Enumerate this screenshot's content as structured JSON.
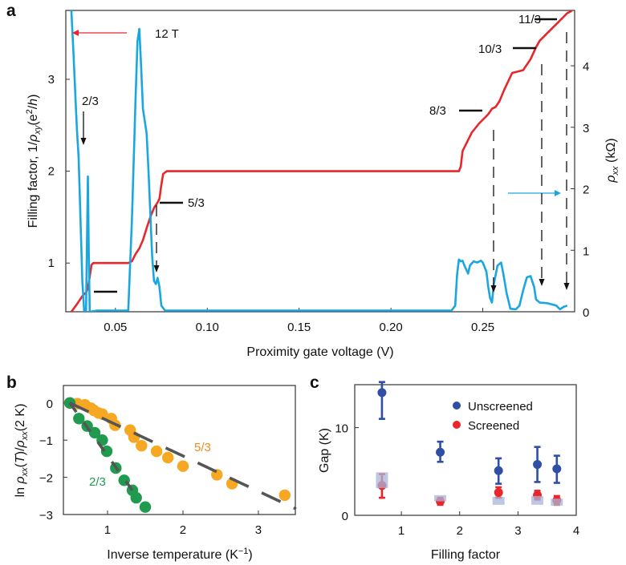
{
  "chart_data": [
    {
      "panel": "a",
      "type": "line",
      "xlabel": "Proximity gate voltage (V)",
      "ylabel_left": "Filling factor, 1/ρxy(e²/h)",
      "ylabel_right": "ρxx (kΩ)",
      "xlim": [
        0.023,
        0.3
      ],
      "ylim_left": [
        0.47,
        3.75
      ],
      "ylim_right": [
        0,
        4.9
      ],
      "x_ticks": [
        {
          "value": 0.05,
          "label": "0.05"
        },
        {
          "value": 0.1,
          "label": "0.10"
        },
        {
          "value": 0.15,
          "label": "0.15"
        },
        {
          "value": 0.2,
          "label": "0.20"
        },
        {
          "value": 0.25,
          "label": "0.25"
        }
      ],
      "y_ticks_left": [
        {
          "value": 1,
          "label": "1"
        },
        {
          "value": 2,
          "label": "2"
        },
        {
          "value": 3,
          "label": "3"
        }
      ],
      "y_ticks_right": [
        {
          "value": 0,
          "label": "0"
        },
        {
          "value": 1,
          "label": "1"
        },
        {
          "value": 2,
          "label": "2"
        },
        {
          "value": 3,
          "label": "3"
        },
        {
          "value": 4,
          "label": "4"
        }
      ],
      "field_label": "12 T",
      "series": [
        {
          "name": "Filling factor (1/ρxy)",
          "axis": "left",
          "color": "#e8262b",
          "points": [
            [
              0.026,
              0.47
            ],
            [
              0.029,
              0.55
            ],
            [
              0.032,
              0.64
            ],
            [
              0.034,
              0.68
            ],
            [
              0.035,
              0.72
            ],
            [
              0.036,
              0.85
            ],
            [
              0.037,
              0.98
            ],
            [
              0.038,
              1.0
            ],
            [
              0.05,
              1.0
            ],
            [
              0.057,
              1.0
            ],
            [
              0.059,
              1.02
            ],
            [
              0.061,
              1.1
            ],
            [
              0.063,
              1.16
            ],
            [
              0.065,
              1.25
            ],
            [
              0.067,
              1.38
            ],
            [
              0.069,
              1.5
            ],
            [
              0.071,
              1.6
            ],
            [
              0.073,
              1.66
            ],
            [
              0.074,
              1.7
            ],
            [
              0.075,
              1.85
            ],
            [
              0.076,
              1.97
            ],
            [
              0.078,
              2.0
            ],
            [
              0.12,
              2.0
            ],
            [
              0.18,
              2.0
            ],
            [
              0.237,
              2.0
            ],
            [
              0.238,
              2.05
            ],
            [
              0.239,
              2.22
            ],
            [
              0.241,
              2.3
            ],
            [
              0.244,
              2.42
            ],
            [
              0.248,
              2.52
            ],
            [
              0.253,
              2.62
            ],
            [
              0.255,
              2.68
            ],
            [
              0.257,
              2.7
            ],
            [
              0.259,
              2.76
            ],
            [
              0.262,
              2.9
            ],
            [
              0.266,
              3.07
            ],
            [
              0.27,
              3.09
            ],
            [
              0.272,
              3.1
            ],
            [
              0.276,
              3.22
            ],
            [
              0.279,
              3.35
            ],
            [
              0.281,
              3.42
            ],
            [
              0.283,
              3.46
            ],
            [
              0.287,
              3.54
            ],
            [
              0.291,
              3.62
            ],
            [
              0.294,
              3.68
            ],
            [
              0.296,
              3.72
            ],
            [
              0.298,
              3.74
            ],
            [
              0.299,
              3.76
            ]
          ]
        },
        {
          "name": "ρxx",
          "axis": "right",
          "color": "#1aa7e0",
          "points": [
            [
              0.026,
              4.9
            ],
            [
              0.027,
              4.3
            ],
            [
              0.029,
              3.0
            ],
            [
              0.03,
              2.5
            ],
            [
              0.031,
              1.5
            ],
            [
              0.032,
              0.5
            ],
            [
              0.033,
              0.0
            ],
            [
              0.034,
              0.0
            ],
            [
              0.035,
              2.2
            ],
            [
              0.0355,
              1.0
            ],
            [
              0.036,
              0.0
            ],
            [
              0.04,
              0.02
            ],
            [
              0.05,
              0.02
            ],
            [
              0.057,
              0.02
            ],
            [
              0.059,
              1.5
            ],
            [
              0.061,
              3.5
            ],
            [
              0.062,
              4.4
            ],
            [
              0.063,
              4.6
            ],
            [
              0.064,
              4.0
            ],
            [
              0.065,
              3.3
            ],
            [
              0.067,
              2.9
            ],
            [
              0.068,
              2.3
            ],
            [
              0.069,
              1.6
            ],
            [
              0.07,
              0.9
            ],
            [
              0.071,
              0.5
            ],
            [
              0.072,
              0.45
            ],
            [
              0.073,
              0.55
            ],
            [
              0.074,
              0.4
            ],
            [
              0.075,
              0.1
            ],
            [
              0.077,
              0.02
            ],
            [
              0.1,
              0.02
            ],
            [
              0.15,
              0.02
            ],
            [
              0.2,
              0.02
            ],
            [
              0.233,
              0.02
            ],
            [
              0.235,
              0.1
            ],
            [
              0.236,
              0.6
            ],
            [
              0.237,
              0.85
            ],
            [
              0.238,
              0.82
            ],
            [
              0.239,
              0.83
            ],
            [
              0.24,
              0.75
            ],
            [
              0.242,
              0.62
            ],
            [
              0.243,
              0.75
            ],
            [
              0.245,
              0.82
            ],
            [
              0.247,
              0.8
            ],
            [
              0.249,
              0.83
            ],
            [
              0.25,
              0.8
            ],
            [
              0.252,
              0.65
            ],
            [
              0.253,
              0.4
            ],
            [
              0.254,
              0.22
            ],
            [
              0.255,
              0.15
            ],
            [
              0.256,
              0.45
            ],
            [
              0.258,
              0.75
            ],
            [
              0.26,
              0.8
            ],
            [
              0.261,
              0.65
            ],
            [
              0.263,
              0.3
            ],
            [
              0.265,
              0.05
            ],
            [
              0.268,
              0.04
            ],
            [
              0.27,
              0.1
            ],
            [
              0.272,
              0.35
            ],
            [
              0.274,
              0.56
            ],
            [
              0.276,
              0.58
            ],
            [
              0.278,
              0.4
            ],
            [
              0.279,
              0.2
            ],
            [
              0.281,
              0.15
            ],
            [
              0.285,
              0.14
            ],
            [
              0.29,
              0.1
            ],
            [
              0.292,
              0.04
            ],
            [
              0.294,
              0.08
            ],
            [
              0.296,
              0.1
            ]
          ]
        }
      ],
      "annotations": [
        {
          "label": "2/3",
          "plateau_value": 0.667,
          "arrow_x": 0.0335
        },
        {
          "label": "5/3",
          "plateau_value": 1.667,
          "arrow_x": 0.0735
        },
        {
          "label": "8/3",
          "plateau_value": 2.667,
          "arrow_x": 0.2565
        },
        {
          "label": "10/3",
          "plateau_value": 3.333,
          "arrow_x": 0.2825
        },
        {
          "label": "11/3",
          "plateau_value": 3.667,
          "arrow_x": 0.2955
        }
      ]
    },
    {
      "panel": "b",
      "type": "scatter",
      "xlabel": "Inverse temperature (K⁻¹)",
      "ylabel": "ln ρxx(T)/ρxx(2 K)",
      "xlim": [
        0.415,
        3.49
      ],
      "ylim": [
        -3,
        0.47
      ],
      "x_ticks": [
        {
          "value": 1,
          "label": "1"
        },
        {
          "value": 2,
          "label": "2"
        },
        {
          "value": 3,
          "label": "3"
        }
      ],
      "y_ticks": [
        {
          "value": 0,
          "label": "0"
        },
        {
          "value": -1,
          "label": "−1"
        },
        {
          "value": -2,
          "label": "−2"
        },
        {
          "value": -3,
          "label": "−3"
        }
      ],
      "series": [
        {
          "name": "5/3",
          "color": "#f7a823",
          "points": [
            [
              0.5,
              0
            ],
            [
              0.6,
              -0.02
            ],
            [
              0.7,
              -0.05
            ],
            [
              0.78,
              -0.14
            ],
            [
              0.82,
              -0.2
            ],
            [
              0.88,
              -0.27
            ],
            [
              0.93,
              -0.3
            ],
            [
              1.05,
              -0.42
            ],
            [
              1.1,
              -0.6
            ],
            [
              1.3,
              -0.73
            ],
            [
              1.35,
              -0.92
            ],
            [
              1.45,
              -1.15
            ],
            [
              1.65,
              -1.3
            ],
            [
              1.8,
              -1.47
            ],
            [
              2.0,
              -1.7
            ],
            [
              2.45,
              -1.93
            ],
            [
              2.65,
              -2.17
            ],
            [
              3.35,
              -2.48
            ]
          ],
          "fit": [
            [
              0.5,
              0
            ],
            [
              3.5,
              -2.85
            ]
          ]
        },
        {
          "name": "2/3",
          "color": "#1f9a4e",
          "points": [
            [
              0.5,
              0
            ],
            [
              0.62,
              -0.42
            ],
            [
              0.73,
              -0.62
            ],
            [
              0.83,
              -0.8
            ],
            [
              0.93,
              -1.0
            ],
            [
              0.99,
              -1.3
            ],
            [
              1.11,
              -1.75
            ],
            [
              1.22,
              -2.08
            ],
            [
              1.33,
              -2.35
            ],
            [
              1.38,
              -2.55
            ],
            [
              1.5,
              -2.8
            ]
          ],
          "fit": [
            [
              0.5,
              0
            ],
            [
              1.4,
              -2.55
            ]
          ]
        }
      ],
      "fit_color": "#555555"
    },
    {
      "panel": "c",
      "type": "scatter",
      "xlabel": "Filling factor",
      "ylabel": "Gap (K)",
      "xlim": [
        0.2,
        4
      ],
      "ylim": [
        0,
        14.9
      ],
      "x_ticks": [
        {
          "value": 1,
          "label": "1"
        },
        {
          "value": 2,
          "label": "2"
        },
        {
          "value": 3,
          "label": "3"
        },
        {
          "value": 4,
          "label": "4"
        }
      ],
      "y_ticks": [
        {
          "value": 0,
          "label": "0"
        },
        {
          "value": 10,
          "label": "10"
        }
      ],
      "legend_position": "top-right",
      "series": [
        {
          "name": "Unscreened",
          "color": "#2e4fa3",
          "points": [
            {
              "x": 0.667,
              "y": 14.0,
              "lo": 11.0,
              "hi": 15.2
            },
            {
              "x": 1.667,
              "y": 7.2,
              "lo": 6.1,
              "hi": 8.4
            },
            {
              "x": 2.667,
              "y": 5.1,
              "lo": 3.6,
              "hi": 6.5
            },
            {
              "x": 3.333,
              "y": 5.8,
              "lo": 3.8,
              "hi": 7.8
            },
            {
              "x": 3.667,
              "y": 5.3,
              "lo": 3.7,
              "hi": 6.8
            }
          ]
        },
        {
          "name": "Screened",
          "color": "#e8262b",
          "points": [
            {
              "x": 0.667,
              "y": 3.4,
              "lo": 2.0,
              "hi": 4.7
            },
            {
              "x": 1.667,
              "y": 1.6,
              "lo": 1.2,
              "hi": 2.0
            },
            {
              "x": 2.667,
              "y": 2.6,
              "lo": 2.0,
              "hi": 3.2
            },
            {
              "x": 3.333,
              "y": 2.3,
              "lo": 1.8,
              "hi": 2.8
            },
            {
              "x": 3.667,
              "y": 1.7,
              "lo": 1.2,
              "hi": 2.2
            }
          ]
        }
      ],
      "shaded_ranges": {
        "color": "#a9b6d8",
        "items": [
          {
            "x": 0.667,
            "lo": 3.1,
            "hi": 4.9
          },
          {
            "x": 1.667,
            "lo": 1.6,
            "hi": 2.3
          },
          {
            "x": 2.667,
            "lo": 1.2,
            "hi": 2.1
          },
          {
            "x": 3.333,
            "lo": 1.2,
            "hi": 2.2
          },
          {
            "x": 3.667,
            "lo": 1.1,
            "hi": 1.9
          }
        ]
      }
    }
  ],
  "panels": {
    "a": {
      "letter": "a",
      "field_label": "12 T",
      "xlabel": "Proximity gate voltage (V)"
    },
    "b": {
      "letter": "b",
      "xlabel_main": "Inverse temperature (K",
      "xlabel_sup": "−1",
      "xlabel_end": ")",
      "label_53": "5/3",
      "label_23": "2/3"
    },
    "c": {
      "letter": "c",
      "xlabel": "Filling factor",
      "ylabel": "Gap (K)",
      "legend_unscreened": "Unscreened",
      "legend_screened": "Screened"
    }
  }
}
